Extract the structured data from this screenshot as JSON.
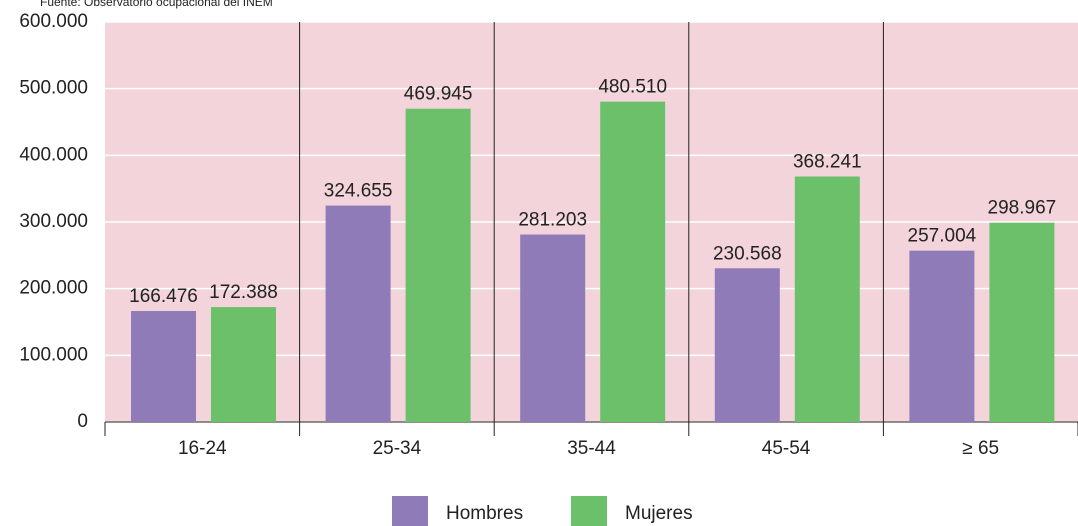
{
  "chart_data": {
    "type": "bar",
    "source": "Fuente: Observatorio ocupacional del INEM",
    "categories": [
      "16-24",
      "25-34",
      "35-44",
      "45-54",
      "≥ 65"
    ],
    "series": [
      {
        "name": "Hombres",
        "color": "#8f7bb8",
        "values": [
          166476,
          324655,
          281203,
          230568,
          257004
        ],
        "value_labels": [
          "166.476",
          "324.655",
          "281.203",
          "230.568",
          "257.004"
        ]
      },
      {
        "name": "Mujeres",
        "color": "#6cc06a",
        "values": [
          172388,
          469945,
          480510,
          368241,
          298967
        ],
        "value_labels": [
          "172.388",
          "469.945",
          "480.510",
          "368.241",
          "298.967"
        ]
      }
    ],
    "ylim": [
      0,
      600000
    ],
    "yticks": [
      0,
      {
        "value": 100000,
        "label": "100.000"
      },
      {
        "value": 200000,
        "label": "200.000"
      },
      {
        "value": 300000,
        "label": "300.000"
      },
      {
        "value": 400000,
        "label": "400.000"
      },
      {
        "value": 500000,
        "label": "500.000"
      },
      {
        "value": 600000,
        "label": "600.000"
      }
    ],
    "grid": true,
    "background": "#f2d4da"
  }
}
